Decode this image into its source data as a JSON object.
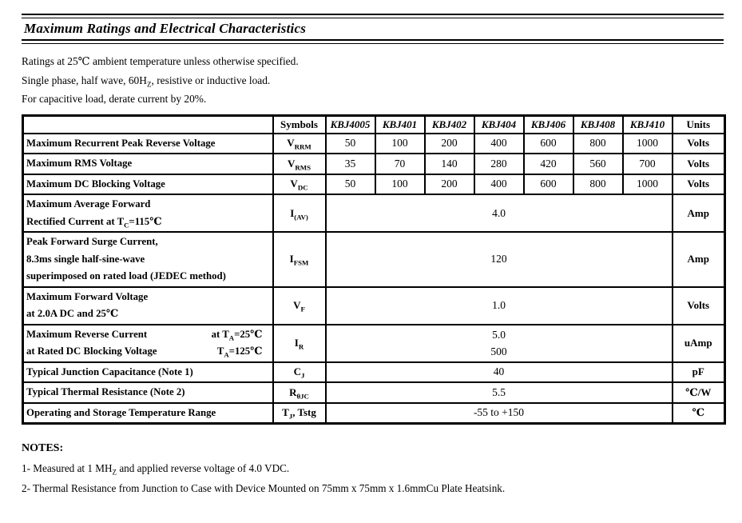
{
  "page": {
    "title": "Maximum Ratings and Electrical Characteristics"
  },
  "intro_lines": [
    "Ratings at 25℃ ambient temperature unless otherwise specified.",
    "Single phase, half wave, 60H~Z~, resistive or inductive load.",
    "For capacitive load, derate current by 20%."
  ],
  "table": {
    "headers": [
      "",
      "Symbols",
      "KBJ4005",
      "KBJ401",
      "KBJ402",
      "KBJ404",
      "KBJ406",
      "KBJ408",
      "KBJ410",
      "Units"
    ],
    "rows": [
      {
        "label_lines": [
          "Maximum Recurrent Peak Reverse Voltage"
        ],
        "symbol": "V~RRM~",
        "values": [
          "50",
          "100",
          "200",
          "400",
          "600",
          "800",
          "1000"
        ],
        "unit": "Volts"
      },
      {
        "label_lines": [
          "Maximum RMS Voltage"
        ],
        "symbol": "V~RMS~",
        "values": [
          "35",
          "70",
          "140",
          "280",
          "420",
          "560",
          "700"
        ],
        "unit": "Volts"
      },
      {
        "label_lines": [
          "Maximum DC Blocking Voltage"
        ],
        "symbol": "V~DC~",
        "values": [
          "50",
          "100",
          "200",
          "400",
          "600",
          "800",
          "1000"
        ],
        "unit": "Volts"
      },
      {
        "label_lines": [
          "Maximum Average Forward",
          "Rectified Current at T~C~=115℃"
        ],
        "symbol": "I~(AV)~",
        "span_value": "4.0",
        "unit": "Amp"
      },
      {
        "label_lines": [
          "Peak Forward Surge Current,",
          "8.3ms single half-sine-wave",
          "superimposed on rated load (JEDEC method)"
        ],
        "symbol": "I~FSM~",
        "span_value": "120",
        "unit": "Amp"
      },
      {
        "label_lines": [
          "Maximum Forward Voltage",
          "at 2.0A DC and 25℃"
        ],
        "symbol": "V~F~",
        "span_value": "1.0",
        "unit": "Volts"
      },
      {
        "label_lines": [
          {
            "left": "Maximum Reverse Current",
            "right": "at T~A~=25℃"
          },
          {
            "left": "at Rated DC Blocking Voltage",
            "right": "T~A~=125℃"
          }
        ],
        "symbol": "I~R~",
        "span_values": [
          "5.0",
          "500"
        ],
        "unit": "uAmp"
      },
      {
        "label_lines": [
          "Typical Junction Capacitance (Note 1)"
        ],
        "symbol": "C~J~",
        "span_value": "40",
        "unit": "pF"
      },
      {
        "label_lines": [
          "Typical Thermal Resistance (Note 2)"
        ],
        "symbol": "R~θJC~",
        "span_value": "5.5",
        "unit": "℃/W"
      },
      {
        "label_lines": [
          "Operating and Storage Temperature Range"
        ],
        "symbol": "T~J~,  Tstg",
        "span_value": "-55 to +150",
        "unit": "℃"
      }
    ]
  },
  "notes": {
    "heading": "NOTES:",
    "items": [
      "1- Measured at 1 MH~Z~ and applied reverse voltage of 4.0 VDC.",
      "2- Thermal Resistance from Junction to Case with Device Mounted on 75mm x 75mm x 1.6mmCu Plate Heatsink."
    ]
  }
}
